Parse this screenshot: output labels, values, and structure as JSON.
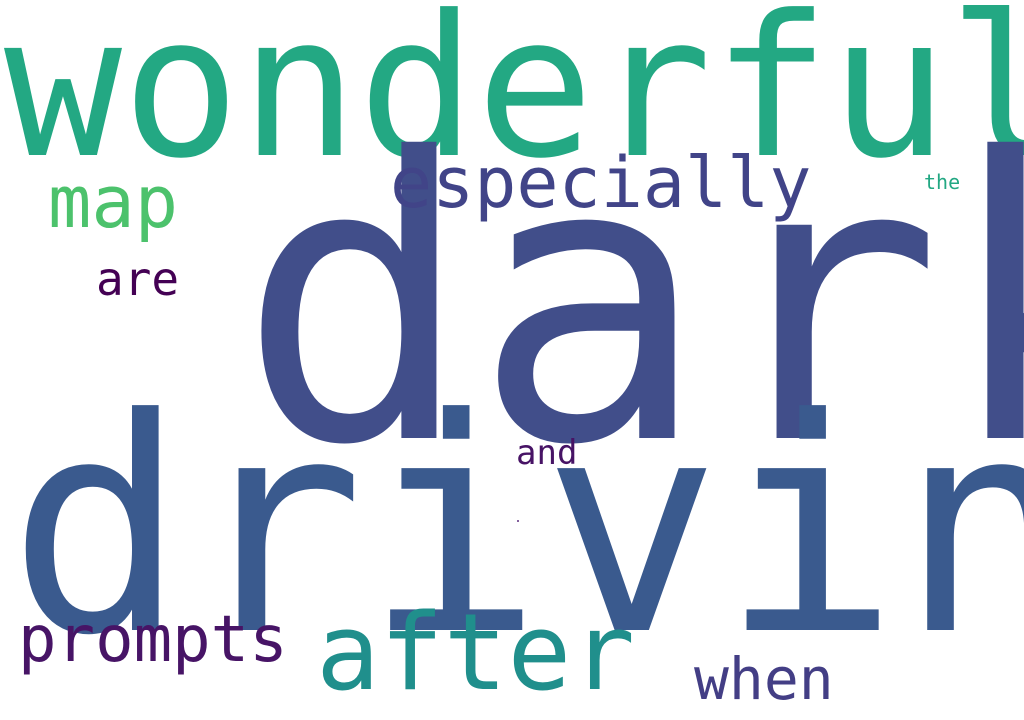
{
  "background": "#ffffff",
  "words": [
    {
      "id": "wonderful",
      "text": "wonderful",
      "color": "#23a883"
    },
    {
      "id": "dark",
      "text": "dark",
      "color": "#414e8a"
    },
    {
      "id": "driving",
      "text": "driving",
      "color": "#3a5a8e"
    },
    {
      "id": "especially",
      "text": "especially",
      "color": "#414488"
    },
    {
      "id": "map",
      "text": "map",
      "color": "#4cc26c"
    },
    {
      "id": "are",
      "text": "are",
      "color": "#440154"
    },
    {
      "id": "the",
      "text": "the",
      "color": "#23a883"
    },
    {
      "id": "and",
      "text": "and",
      "color": "#471365"
    },
    {
      "id": "prompts",
      "text": "prompts",
      "color": "#471466"
    },
    {
      "id": "after",
      "text": "after",
      "color": "#208f8c"
    },
    {
      "id": "when",
      "text": "when",
      "color": "#433e85"
    }
  ]
}
